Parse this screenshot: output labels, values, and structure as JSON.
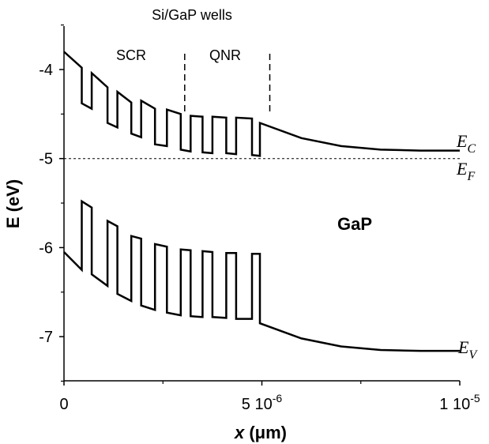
{
  "chart_data": {
    "type": "line",
    "title": "",
    "xlabel_var": "x",
    "xlabel_unit": " (μm)",
    "ylabel": "E (eV)",
    "xlim": [
      0,
      1e-05
    ],
    "ylim": [
      -7.5,
      -3.5
    ],
    "x_ticks": [
      {
        "value": 0,
        "base": "0",
        "exp": ""
      },
      {
        "value": 5e-06,
        "base": "5 10",
        "exp": "-6"
      },
      {
        "value": 1e-05,
        "base": "1 10",
        "exp": "-5"
      }
    ],
    "y_ticks": [
      {
        "value": -4,
        "label": "-4"
      },
      {
        "value": -5,
        "label": "-5"
      },
      {
        "value": -6,
        "label": "-6"
      },
      {
        "value": -7,
        "label": "-7"
      }
    ],
    "fermi_level": -5.0,
    "region_dividers": [
      3.05e-06,
      5.2e-06
    ],
    "annotations": {
      "wells": "Si/GaP wells",
      "scr": "SCR",
      "qnr": "QNR",
      "material": "GaP"
    },
    "band_labels": {
      "ec_main": "E",
      "ec_sub": "C",
      "ef_main": "E",
      "ef_sub": "F",
      "ev_main": "E",
      "ev_sub": "V"
    },
    "series": [
      {
        "id": "conduction-band",
        "x": [
          0,
          4.5e-07,
          4.5e-07,
          7e-07,
          7e-07,
          1.1e-06,
          1.1e-06,
          1.35e-06,
          1.35e-06,
          1.7e-06,
          1.7e-06,
          1.95e-06,
          1.95e-06,
          2.3e-06,
          2.3e-06,
          2.6e-06,
          2.6e-06,
          2.95e-06,
          2.95e-06,
          3.2e-06,
          3.2e-06,
          3.5e-06,
          3.5e-06,
          3.75e-06,
          3.75e-06,
          4.1e-06,
          4.1e-06,
          4.35e-06,
          4.35e-06,
          4.75e-06,
          4.75e-06,
          4.95e-06,
          4.95e-06,
          6e-06,
          7e-06,
          8e-06,
          9e-06,
          1e-05
        ],
        "y": [
          -3.8,
          -3.98,
          -4.38,
          -4.44,
          -4.04,
          -4.2,
          -4.6,
          -4.65,
          -4.25,
          -4.37,
          -4.72,
          -4.76,
          -4.35,
          -4.44,
          -4.84,
          -4.86,
          -4.45,
          -4.5,
          -4.9,
          -4.92,
          -4.52,
          -4.53,
          -4.93,
          -4.94,
          -4.53,
          -4.54,
          -4.94,
          -4.95,
          -4.54,
          -4.55,
          -4.96,
          -4.97,
          -4.6,
          -4.77,
          -4.86,
          -4.9,
          -4.91,
          -4.91
        ]
      },
      {
        "id": "valence-band",
        "x": [
          0,
          4.5e-07,
          4.5e-07,
          7e-07,
          7e-07,
          1.1e-06,
          1.1e-06,
          1.35e-06,
          1.35e-06,
          1.7e-06,
          1.7e-06,
          1.95e-06,
          1.95e-06,
          2.3e-06,
          2.3e-06,
          2.6e-06,
          2.6e-06,
          2.95e-06,
          2.95e-06,
          3.2e-06,
          3.2e-06,
          3.5e-06,
          3.5e-06,
          3.75e-06,
          3.75e-06,
          4.1e-06,
          4.1e-06,
          4.35e-06,
          4.35e-06,
          4.75e-06,
          4.75e-06,
          4.95e-06,
          4.95e-06,
          6e-06,
          7e-06,
          8e-06,
          9e-06,
          1e-05
        ],
        "y": [
          -6.05,
          -6.25,
          -5.48,
          -5.55,
          -6.3,
          -6.43,
          -5.7,
          -5.76,
          -6.52,
          -6.6,
          -5.87,
          -5.9,
          -6.65,
          -6.7,
          -5.96,
          -5.99,
          -6.73,
          -6.76,
          -6.02,
          -6.03,
          -6.77,
          -6.78,
          -6.04,
          -6.05,
          -6.78,
          -6.79,
          -6.06,
          -6.06,
          -6.8,
          -6.8,
          -6.07,
          -6.07,
          -6.85,
          -7.02,
          -7.11,
          -7.15,
          -7.16,
          -7.16
        ]
      }
    ]
  }
}
